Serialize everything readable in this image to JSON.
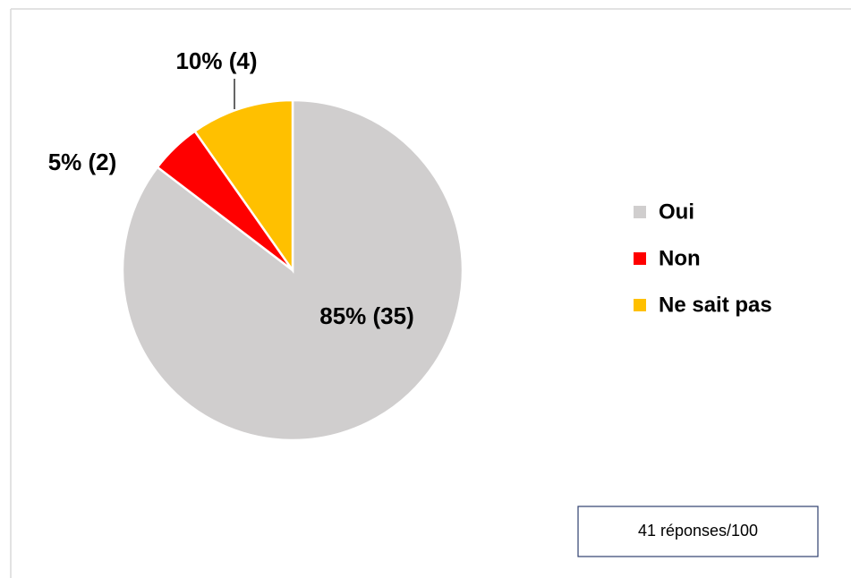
{
  "chart_data": {
    "type": "pie",
    "categories": [
      "Oui",
      "Non",
      "Ne sait pas"
    ],
    "values": [
      35,
      2,
      4
    ],
    "value_labels": [
      "85% (35)",
      "5% (2)",
      "10% (4)"
    ],
    "colors": [
      "#d0cece",
      "#ff0000",
      "#ffc000"
    ],
    "legend": "right",
    "annotation": "41 réponses/100"
  }
}
